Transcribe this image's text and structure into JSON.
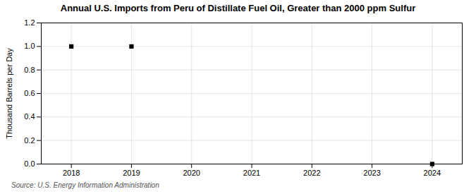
{
  "chart_data": {
    "type": "scatter",
    "title": "Annual U.S. Imports from Peru of Distillate Fuel Oil, Greater than 2000 ppm Sulfur",
    "ylabel": "Thousand Barrels per Day",
    "source": "Source: U.S. Energy Information Administration",
    "x": [
      2018,
      2019,
      2024
    ],
    "values": [
      1.0,
      1.0,
      0.0
    ],
    "marker": "square",
    "xlim": [
      2017.5,
      2024.5
    ],
    "ylim": [
      0.0,
      1.2
    ],
    "xticks": [
      2018,
      2019,
      2020,
      2021,
      2022,
      2023,
      2024
    ],
    "yticks": [
      {
        "value": 0.0,
        "label": "0.0"
      },
      0.2,
      0.4,
      0.6,
      0.8,
      {
        "value": 1.0,
        "label": "1.0"
      },
      1.2
    ],
    "grid": true
  }
}
